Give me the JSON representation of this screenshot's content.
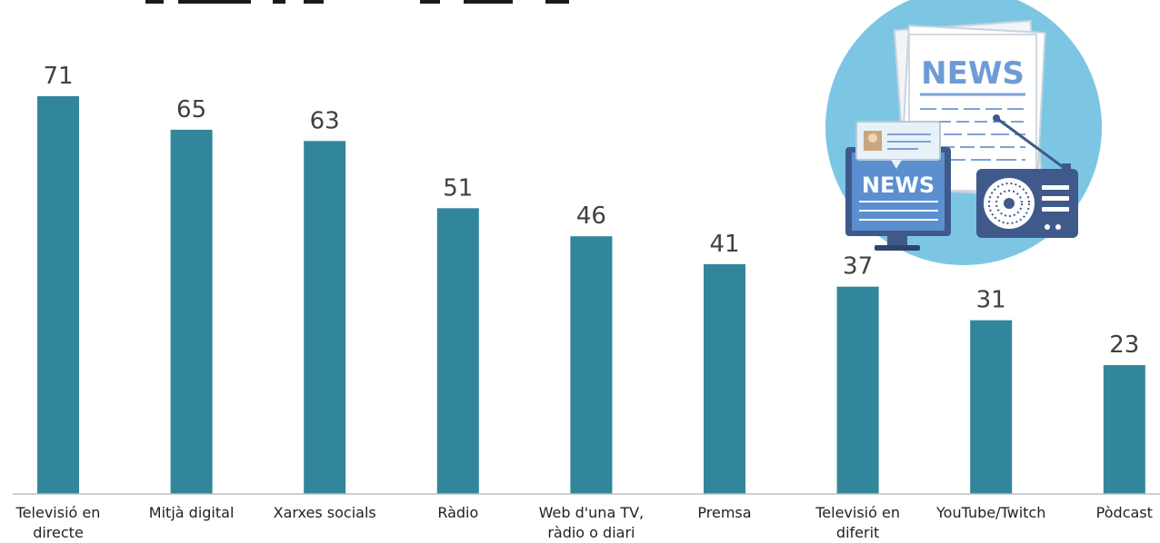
{
  "chart_data": {
    "type": "bar",
    "title": "",
    "xlabel": "",
    "ylabel": "",
    "ylim": [
      0,
      80
    ],
    "grid": false,
    "legend": "none",
    "bar_color": "#31869B",
    "categories": [
      [
        "Televisió en",
        "directe"
      ],
      [
        "Mitjà digital"
      ],
      [
        "Xarxes socials"
      ],
      [
        "Ràdio"
      ],
      [
        "Web d'una TV,",
        "ràdio o diari"
      ],
      [
        "Premsa"
      ],
      [
        "Televisió en",
        "diferit"
      ],
      [
        "YouTube/Twitch"
      ],
      [
        "Pòdcast"
      ]
    ],
    "values": [
      71,
      65,
      63,
      51,
      46,
      41,
      37,
      31,
      23
    ]
  },
  "illustration": {
    "newspaper_headline": "NEWS",
    "monitor_headline": "NEWS",
    "circle_color": "#7CC6E4",
    "monitor_color": "#5B8FD0",
    "radio_color": "#3F5A8A"
  }
}
